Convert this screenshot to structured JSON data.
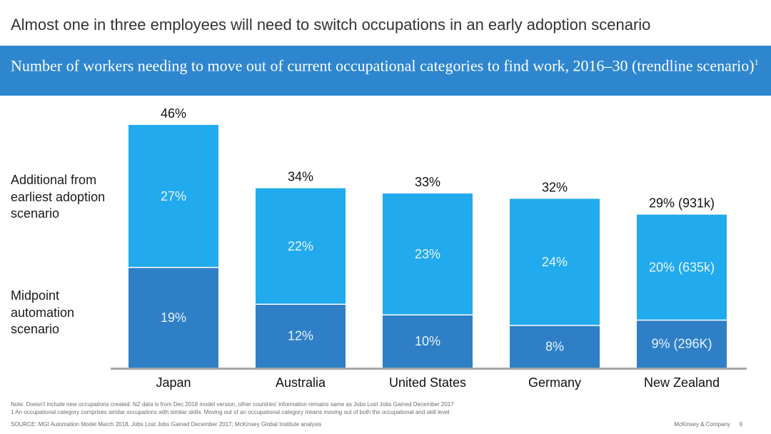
{
  "slide": {
    "title": "Almost one in three employees will need to switch occupations in an early adoption scenario",
    "banner_title": "Number of workers needing to move out of current occupational categories to find work, 2016–30 (trendline scenario)",
    "banner_footnote_marker": "1"
  },
  "legend": {
    "top_label": [
      "Additional from",
      "earliest adoption",
      "scenario"
    ],
    "bottom_label": [
      "Midpoint",
      "automation",
      "scenario"
    ]
  },
  "chart_data": {
    "type": "bar",
    "stacked": true,
    "categories": [
      "Japan",
      "Australia",
      "United States",
      "Germany",
      "New Zealand"
    ],
    "series": [
      {
        "name": "Midpoint automation scenario",
        "values": [
          19,
          12,
          10,
          8,
          9
        ],
        "labels": [
          "19%",
          "12%",
          "10%",
          "8%",
          "9% (296K)"
        ],
        "color": "#2f7fc6"
      },
      {
        "name": "Additional from earliest adoption scenario",
        "values": [
          27,
          22,
          23,
          24,
          20
        ],
        "labels": [
          "27%",
          "22%",
          "23%",
          "24%",
          "20% (635k)"
        ],
        "color": "#22aaee"
      }
    ],
    "totals": [
      46,
      34,
      33,
      32,
      29
    ],
    "total_labels": [
      "46%",
      "34%",
      "33%",
      "32%",
      "29% (931k)"
    ],
    "ylim": [
      0,
      46
    ],
    "axis_color": "#a6a6a6",
    "grid": false
  },
  "footer": {
    "note": "Note: Doesn't include new occupations created. NZ data is from Dec 2018 model version, other countries' information remains same as Jobs Lost Jobs Gained December 2017",
    "footnote": "1 An occupational category comprises similar occupations with similar skills.  Moving out of an occupational category means moving out of both the occupational and skill level",
    "source": "SOURCE: MGI Automation Model March 2018, Jobs Lost Jobs Gained December 2017; McKinsey Global Institute analysis",
    "brand": "McKinsey & Company",
    "page_number": "9"
  }
}
